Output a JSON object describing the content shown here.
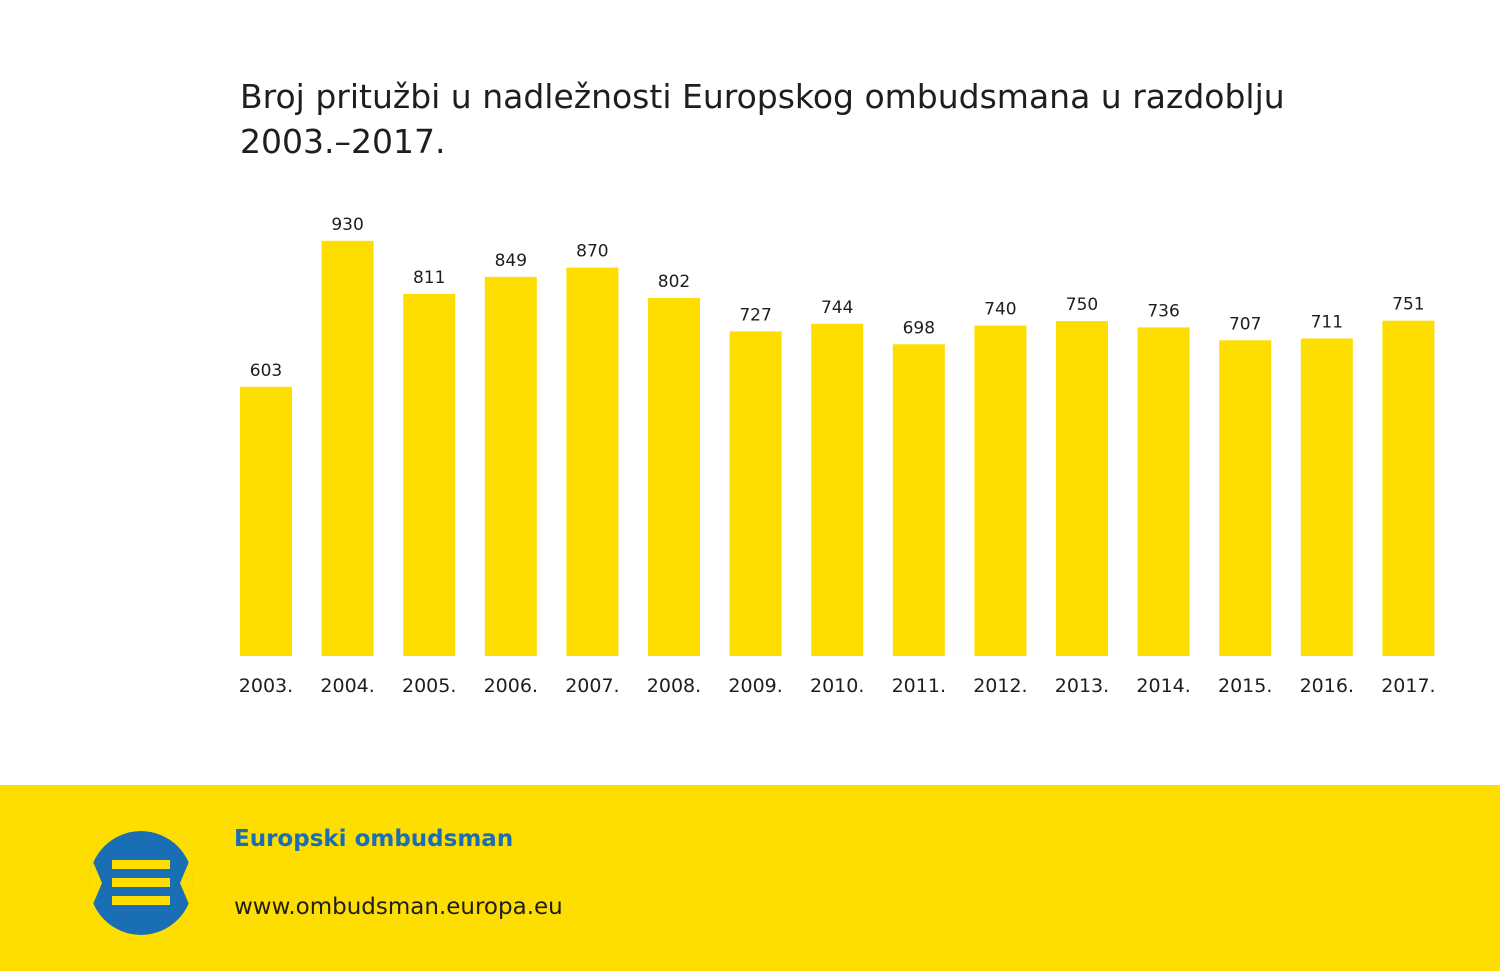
{
  "chart_data": {
    "type": "bar",
    "title": "Broj pritužbi u nadležnosti Europskog ombudsmana u razdoblju 2003.–2017.",
    "xlabel": "",
    "ylabel": "",
    "categories": [
      "2003.",
      "2004.",
      "2005.",
      "2006.",
      "2007.",
      "2008.",
      "2009.",
      "2010.",
      "2011.",
      "2012.",
      "2013.",
      "2014.",
      "2015.",
      "2016.",
      "2017."
    ],
    "values": [
      603,
      930,
      811,
      849,
      870,
      802,
      727,
      744,
      698,
      740,
      750,
      736,
      707,
      711,
      751
    ],
    "ylim": [
      0,
      1000
    ],
    "grid": false,
    "data_labels": true,
    "bar_color": "#FEDD00"
  },
  "footer": {
    "brand": "Europski ombudsman",
    "url": "www.ombudsman.europa.eu",
    "logo_icon": "european-ombudsman-logo-icon",
    "background_color": "#FEDD00",
    "brand_color": "#1a6fb4"
  }
}
